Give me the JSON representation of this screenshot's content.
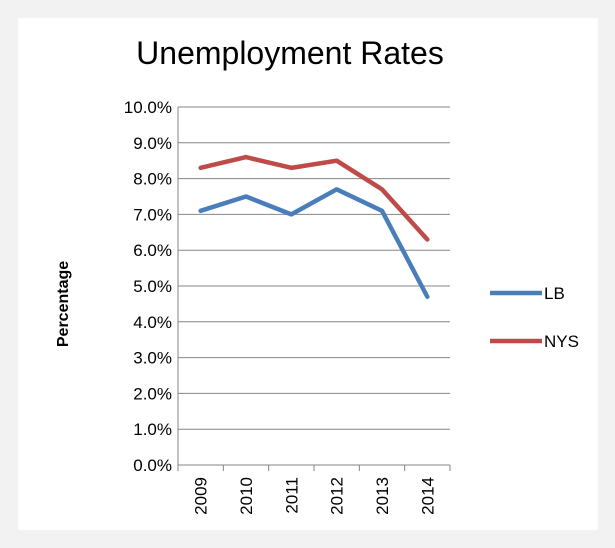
{
  "chart_data": {
    "type": "line",
    "title": "Unemployment Rates",
    "xlabel": "",
    "ylabel": "Percentage",
    "categories": [
      "2009",
      "2010",
      "2011",
      "2012",
      "2013",
      "2014"
    ],
    "series": [
      {
        "name": "LB",
        "values": [
          7.1,
          7.5,
          7.0,
          7.7,
          7.1,
          4.7
        ],
        "color": "#4a7ebb"
      },
      {
        "name": "NYS",
        "values": [
          8.3,
          8.6,
          8.3,
          8.5,
          7.7,
          6.3
        ],
        "color": "#be4b48"
      }
    ],
    "ylim": [
      0,
      10
    ],
    "yticks": [
      "0.0%",
      "1.0%",
      "2.0%",
      "3.0%",
      "4.0%",
      "5.0%",
      "6.0%",
      "7.0%",
      "8.0%",
      "9.0%",
      "10.0%"
    ],
    "grid": true,
    "legend": "right"
  }
}
